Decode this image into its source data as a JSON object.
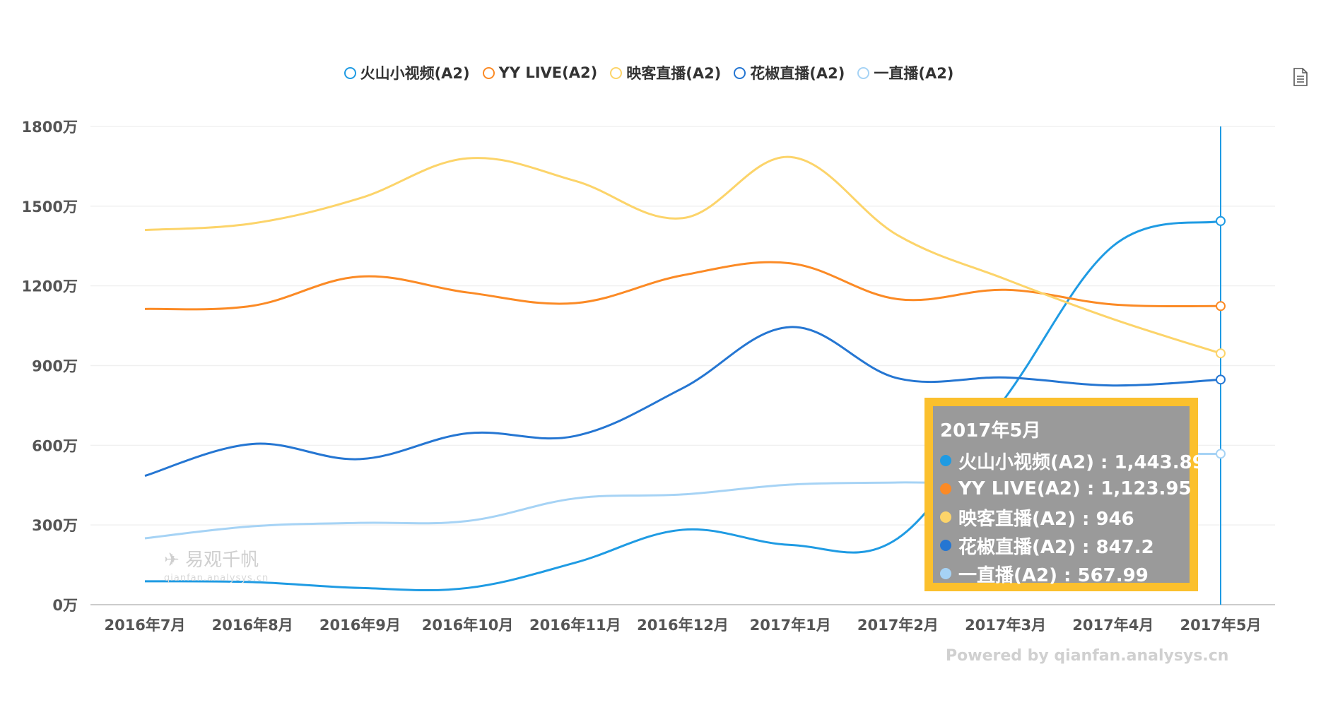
{
  "chart_data": {
    "type": "line",
    "title": "",
    "xlabel": "",
    "ylabel": "",
    "ylim": [
      0,
      1800
    ],
    "yticks": [
      "0万",
      "300万",
      "600万",
      "900万",
      "1200万",
      "1500万",
      "1800万"
    ],
    "ytick_values": [
      0,
      300,
      600,
      900,
      1200,
      1500,
      1800
    ],
    "categories": [
      "2016年7月",
      "2016年8月",
      "2016年9月",
      "2016年10月",
      "2016年11月",
      "2016年12月",
      "2017年1月",
      "2017年2月",
      "2017年3月",
      "2017年4月",
      "2017年5月"
    ],
    "grid": true,
    "legend_position": "top-center",
    "series": [
      {
        "name": "火山小视频(A2)",
        "color": "#1f9be3",
        "values": [
          88,
          85,
          63,
          63,
          158,
          282,
          225,
          250,
          780,
          1350,
          1443.89
        ]
      },
      {
        "name": "YY LIVE(A2)",
        "color": "#fb8a25",
        "values": [
          1113,
          1125,
          1235,
          1175,
          1135,
          1240,
          1285,
          1150,
          1185,
          1130,
          1123.95
        ]
      },
      {
        "name": "映客直播(A2)",
        "color": "#fcd46a",
        "values": [
          1410,
          1435,
          1530,
          1680,
          1595,
          1455,
          1685,
          1390,
          1225,
          1075,
          946
        ]
      },
      {
        "name": "花椒直播(A2)",
        "color": "#2576d2",
        "values": [
          485,
          605,
          548,
          645,
          635,
          815,
          1045,
          852,
          855,
          825,
          847.2
        ]
      },
      {
        "name": "一直播(A2)",
        "color": "#a6d3f5",
        "values": [
          250,
          295,
          308,
          315,
          400,
          415,
          452,
          460,
          465,
          555,
          567.99
        ]
      }
    ]
  },
  "tooltip": {
    "title": "2017年5月",
    "rows": [
      {
        "label": "火山小视频(A2) : 1,443.89",
        "color": "#1f9be3"
      },
      {
        "label": "YY LIVE(A2) : 1,123.95",
        "color": "#fb8a25"
      },
      {
        "label": "映客直播(A2) : 946",
        "color": "#fcd46a"
      },
      {
        "label": "花椒直播(A2) : 847.2",
        "color": "#2576d2"
      },
      {
        "label": "一直播(A2) : 567.99",
        "color": "#a6d3f5"
      }
    ]
  },
  "watermark": {
    "name": "易观千帆",
    "url": "qianfan.analysys.cn"
  },
  "footer": "Powered by qianfan.analysys.cn",
  "icons": {
    "export": "file-text-icon"
  }
}
